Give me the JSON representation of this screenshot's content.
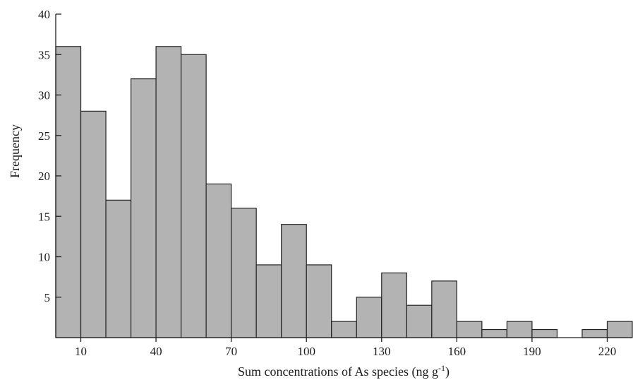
{
  "chart_data": {
    "type": "bar",
    "xlabel": "Sum concentrations of As species (ng g",
    "xlabel_sup": "-1",
    "xlabel_end": ")",
    "ylabel": "Frequency",
    "ylim": [
      0,
      40
    ],
    "xlim": [
      0,
      230
    ],
    "bin_width": 10,
    "yticks": [
      5,
      10,
      15,
      20,
      25,
      30,
      35,
      40
    ],
    "xticks": [
      10,
      40,
      70,
      100,
      130,
      160,
      190,
      220
    ],
    "bins": [
      {
        "start": 0,
        "end": 10,
        "value": 36
      },
      {
        "start": 10,
        "end": 20,
        "value": 28
      },
      {
        "start": 20,
        "end": 30,
        "value": 17
      },
      {
        "start": 30,
        "end": 40,
        "value": 32
      },
      {
        "start": 40,
        "end": 50,
        "value": 36
      },
      {
        "start": 50,
        "end": 60,
        "value": 35
      },
      {
        "start": 60,
        "end": 70,
        "value": 19
      },
      {
        "start": 70,
        "end": 80,
        "value": 16
      },
      {
        "start": 80,
        "end": 90,
        "value": 9
      },
      {
        "start": 90,
        "end": 100,
        "value": 14
      },
      {
        "start": 100,
        "end": 110,
        "value": 9
      },
      {
        "start": 110,
        "end": 120,
        "value": 2
      },
      {
        "start": 120,
        "end": 130,
        "value": 5
      },
      {
        "start": 130,
        "end": 140,
        "value": 8
      },
      {
        "start": 140,
        "end": 150,
        "value": 4
      },
      {
        "start": 150,
        "end": 160,
        "value": 7
      },
      {
        "start": 160,
        "end": 170,
        "value": 2
      },
      {
        "start": 170,
        "end": 180,
        "value": 1
      },
      {
        "start": 180,
        "end": 190,
        "value": 2
      },
      {
        "start": 190,
        "end": 200,
        "value": 1
      },
      {
        "start": 200,
        "end": 210,
        "value": 0
      },
      {
        "start": 210,
        "end": 220,
        "value": 1
      },
      {
        "start": 220,
        "end": 230,
        "value": 2
      }
    ],
    "grid": false,
    "legend": "none"
  }
}
